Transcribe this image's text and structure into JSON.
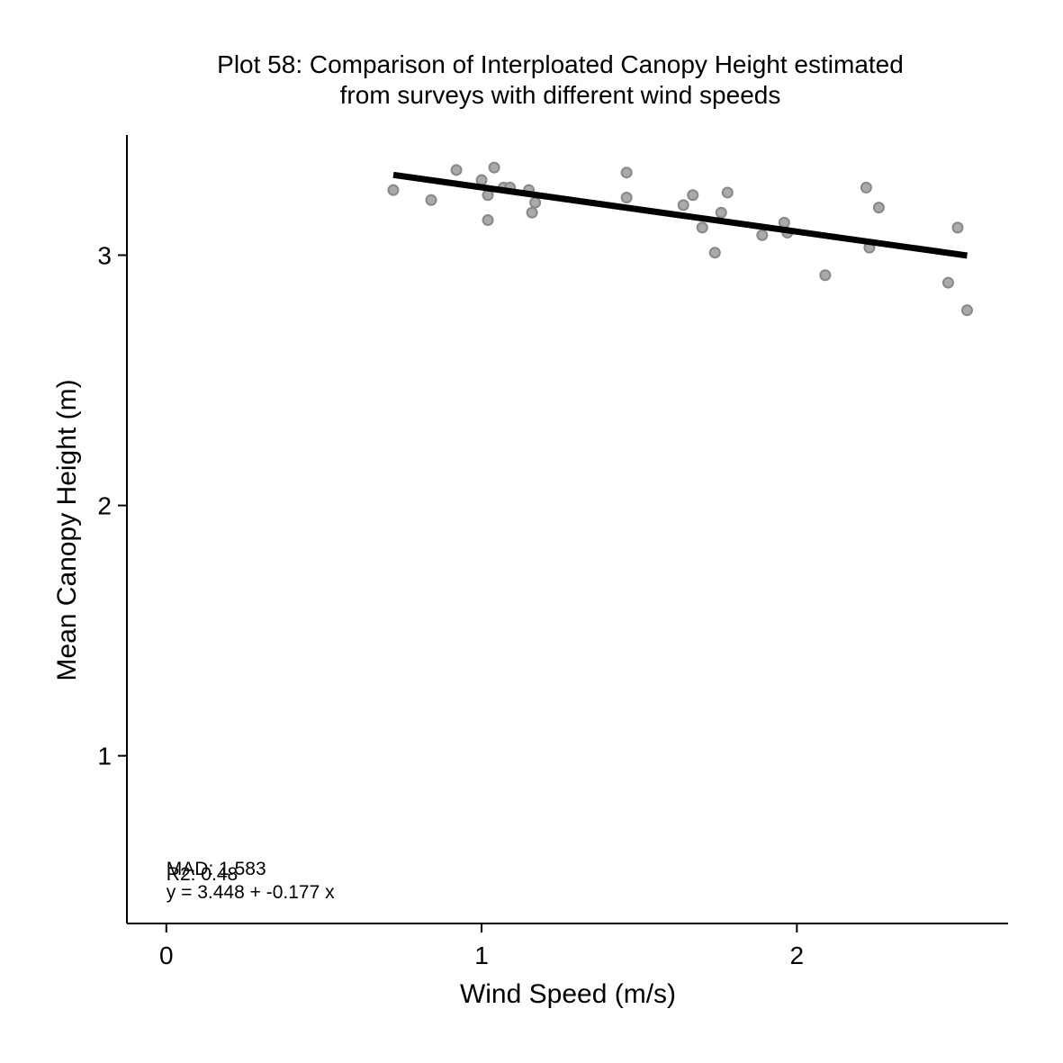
{
  "chart_data": {
    "type": "scatter",
    "title_lines": [
      "Plot 58: Comparison of Interploated Canopy Height estimated",
      "from surveys with different wind speeds"
    ],
    "xlabel": "Wind Speed (m/s)",
    "ylabel": "Mean Canopy Height (m)",
    "xlim": [
      -0.125,
      2.67
    ],
    "ylim": [
      0.33,
      3.48
    ],
    "x_ticks": [
      0,
      1,
      2
    ],
    "y_ticks": [
      1,
      2,
      3
    ],
    "grid": false,
    "points": [
      {
        "x": 0.72,
        "y": 3.26
      },
      {
        "x": 0.84,
        "y": 3.22
      },
      {
        "x": 0.92,
        "y": 3.34
      },
      {
        "x": 1.0,
        "y": 3.3
      },
      {
        "x": 1.02,
        "y": 3.24
      },
      {
        "x": 1.02,
        "y": 3.14
      },
      {
        "x": 1.04,
        "y": 3.35
      },
      {
        "x": 1.07,
        "y": 3.27
      },
      {
        "x": 1.09,
        "y": 3.27
      },
      {
        "x": 1.15,
        "y": 3.26
      },
      {
        "x": 1.16,
        "y": 3.17
      },
      {
        "x": 1.17,
        "y": 3.21
      },
      {
        "x": 1.46,
        "y": 3.33
      },
      {
        "x": 1.46,
        "y": 3.23
      },
      {
        "x": 1.64,
        "y": 3.2
      },
      {
        "x": 1.67,
        "y": 3.24
      },
      {
        "x": 1.7,
        "y": 3.11
      },
      {
        "x": 1.74,
        "y": 3.01
      },
      {
        "x": 1.76,
        "y": 3.17
      },
      {
        "x": 1.78,
        "y": 3.25
      },
      {
        "x": 1.89,
        "y": 3.08
      },
      {
        "x": 1.96,
        "y": 3.13
      },
      {
        "x": 1.97,
        "y": 3.09
      },
      {
        "x": 2.09,
        "y": 2.92
      },
      {
        "x": 2.22,
        "y": 3.27
      },
      {
        "x": 2.23,
        "y": 3.03
      },
      {
        "x": 2.26,
        "y": 3.19
      },
      {
        "x": 2.48,
        "y": 2.89
      },
      {
        "x": 2.51,
        "y": 3.11
      },
      {
        "x": 2.54,
        "y": 2.78
      }
    ],
    "fit_line": {
      "intercept": 3.448,
      "slope": -0.177,
      "x_range": [
        0.72,
        2.54
      ]
    },
    "annotations": [
      "MAD: 1.583",
      "R2: 0.48",
      "y =  3.448 + -0.177 x"
    ],
    "colors": {
      "points_fill": "#aaaaaa",
      "points_stroke": "#888888",
      "fit_line": "#000000"
    }
  }
}
